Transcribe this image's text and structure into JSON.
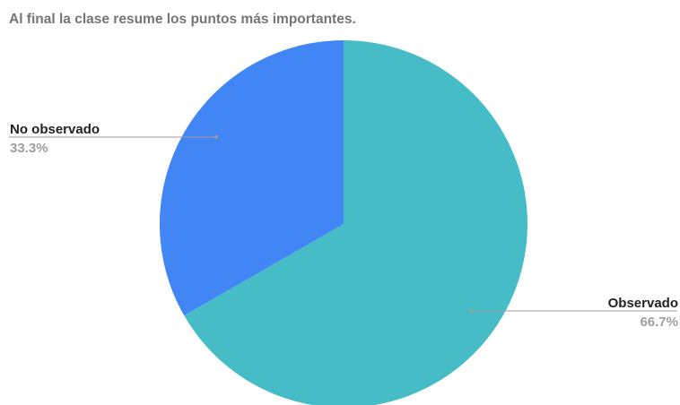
{
  "chart_data": {
    "type": "pie",
    "title": "Al final la clase resume los puntos más importantes.",
    "slices": [
      {
        "label": "Observado",
        "value": 66.7,
        "percent_label": "66.7%",
        "color": "#46bdc6"
      },
      {
        "label": "No observado",
        "value": 33.3,
        "percent_label": "33.3%",
        "color": "#4285f4"
      }
    ],
    "start_angle_deg": 0,
    "direction": "clockwise",
    "legend": "none",
    "label_style": "outside-leader-lines",
    "colors": {
      "label_text": "#222222",
      "percent_text": "#9e9e9e",
      "title_text": "#757575",
      "leader_line": "#9e9e9e"
    }
  }
}
